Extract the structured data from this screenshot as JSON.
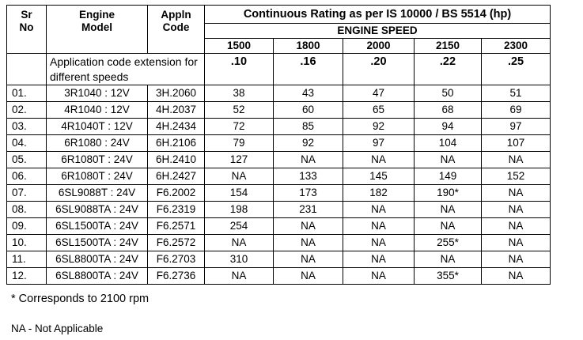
{
  "headers": {
    "sr_no": "Sr\nNo",
    "engine_model": "Engine\nModel",
    "appln_code": "Appln\nCode",
    "rating_title": "Continuous Rating as per IS 10000 / BS 5514 (hp)",
    "engine_speed": "ENGINE SPEED",
    "speeds": [
      "1500",
      "1800",
      "2000",
      "2150",
      "2300"
    ]
  },
  "extension_row": {
    "label": "Application code extension for different speeds",
    "codes": [
      ".10",
      ".16",
      ".20",
      ".22",
      ".25"
    ]
  },
  "rows": [
    {
      "sr": "01.",
      "model": "3R1040 : 12V",
      "code": "3H.2060",
      "ratings": [
        "38",
        "43",
        "47",
        "50",
        "51"
      ]
    },
    {
      "sr": "02.",
      "model": "4R1040 : 12V",
      "code": "4H.2037",
      "ratings": [
        "52",
        "60",
        "65",
        "68",
        "69"
      ]
    },
    {
      "sr": "03.",
      "model": "4R1040T : 12V",
      "code": "4H.2434",
      "ratings": [
        "72",
        "85",
        "92",
        "94",
        "97"
      ]
    },
    {
      "sr": "04.",
      "model": "6R1080 : 24V",
      "code": "6H.2106",
      "ratings": [
        "79",
        "92",
        "97",
        "104",
        "107"
      ]
    },
    {
      "sr": "05.",
      "model": "6R1080T : 24V",
      "code": "6H.2410",
      "ratings": [
        "127",
        "NA",
        "NA",
        "NA",
        "NA"
      ]
    },
    {
      "sr": "06.",
      "model": "6R1080T : 24V",
      "code": "6H.2427",
      "ratings": [
        "NA",
        "133",
        "145",
        "149",
        "152"
      ]
    },
    {
      "sr": "07.",
      "model": "6SL9088T : 24V",
      "code": "F6.2002",
      "ratings": [
        "154",
        "173",
        "182",
        "190*",
        "NA"
      ]
    },
    {
      "sr": "08.",
      "model": "6SL9088TA : 24V",
      "code": "F6.2319",
      "ratings": [
        "198",
        "231",
        "NA",
        "NA",
        "NA"
      ]
    },
    {
      "sr": "09.",
      "model": "6SL1500TA : 24V",
      "code": "F6.2571",
      "ratings": [
        "254",
        "NA",
        "NA",
        "NA",
        "NA"
      ]
    },
    {
      "sr": "10.",
      "model": "6SL1500TA : 24V",
      "code": "F6.2572",
      "ratings": [
        "NA",
        "NA",
        "NA",
        "255*",
        "NA"
      ]
    },
    {
      "sr": "11.",
      "model": "6SL8800TA : 24V",
      "code": "F6.2703",
      "ratings": [
        "310",
        "NA",
        "NA",
        "NA",
        "NA"
      ]
    },
    {
      "sr": "12.",
      "model": "6SL8800TA : 24V",
      "code": "F6.2736",
      "ratings": [
        "NA",
        "NA",
        "NA",
        "355*",
        "NA"
      ]
    }
  ],
  "footnotes": {
    "asterisk": "* Corresponds to 2100 rpm",
    "na": "NA  -  Not Applicable"
  }
}
